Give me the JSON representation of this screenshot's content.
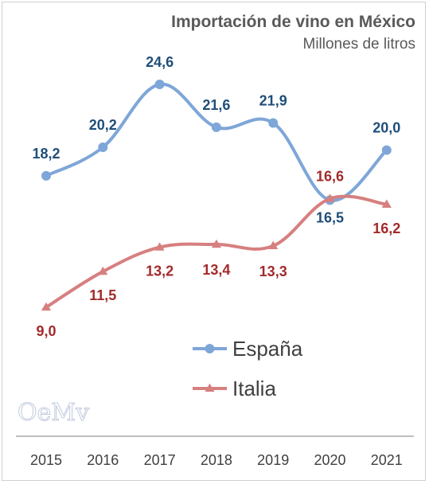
{
  "chart_data": {
    "type": "line",
    "title": "Importación de vino en México",
    "subtitle": "Millones de litros",
    "categories": [
      "2015",
      "2016",
      "2017",
      "2018",
      "2019",
      "2020",
      "2021"
    ],
    "series": [
      {
        "name": "España",
        "color": "#7ea6d8",
        "label_color": "#1f4e79",
        "marker": "circle",
        "values": [
          18.2,
          20.2,
          24.6,
          21.6,
          21.9,
          16.5,
          20.0
        ],
        "labels": [
          "18,2",
          "20,2",
          "24,6",
          "21,6",
          "21,9",
          "16,5",
          "20,0"
        ]
      },
      {
        "name": "Italia",
        "color": "#d77f7f",
        "label_color": "#a32a2a",
        "marker": "triangle",
        "values": [
          9.0,
          11.5,
          13.2,
          13.4,
          13.3,
          16.6,
          16.2
        ],
        "labels": [
          "9,0",
          "11,5",
          "13,2",
          "13,4",
          "13,3",
          "16,6",
          "16,2"
        ]
      }
    ],
    "legend_position": "bottom-right",
    "grid": false
  },
  "watermark": "OeMv"
}
